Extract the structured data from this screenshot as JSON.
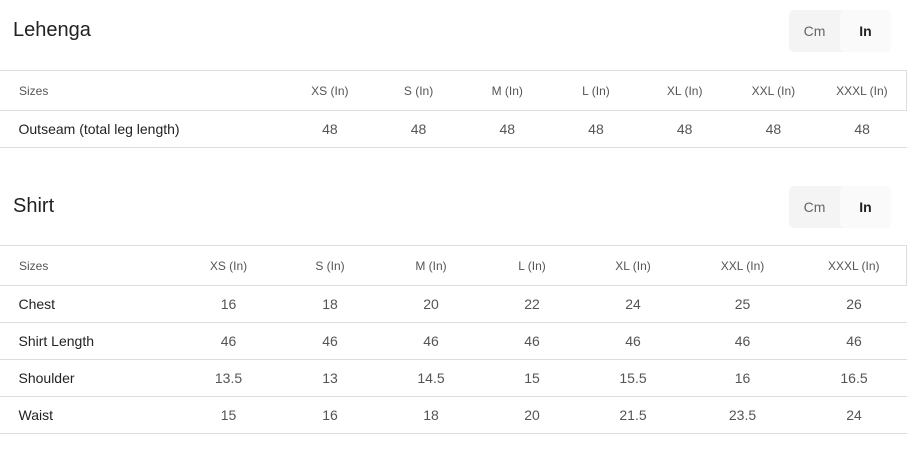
{
  "units": {
    "cm": "Cm",
    "in": "In",
    "selected": "In"
  },
  "lehenga": {
    "title": "Lehenga",
    "headers": [
      "Sizes",
      "XS (In)",
      "S (In)",
      "M (In)",
      "L (In)",
      "XL (In)",
      "XXL (In)",
      "XXXL (In)"
    ],
    "rows": [
      [
        "Outseam (total leg length)",
        "48",
        "48",
        "48",
        "48",
        "48",
        "48",
        "48"
      ]
    ]
  },
  "shirt": {
    "title": "Shirt",
    "headers": [
      "Sizes",
      "XS (In)",
      "S (In)",
      "M (In)",
      "L (In)",
      "XL (In)",
      "XXL (In)",
      "XXXL (In)"
    ],
    "rows": [
      [
        "Chest",
        "16",
        "18",
        "20",
        "22",
        "24",
        "25",
        "26"
      ],
      [
        "Shirt Length",
        "46",
        "46",
        "46",
        "46",
        "46",
        "46",
        "46"
      ],
      [
        "Shoulder",
        "13.5",
        "13",
        "14.5",
        "15",
        "15.5",
        "16",
        "16.5"
      ],
      [
        "Waist",
        "15",
        "16",
        "18",
        "20",
        "21.5",
        "23.5",
        "24"
      ]
    ]
  }
}
